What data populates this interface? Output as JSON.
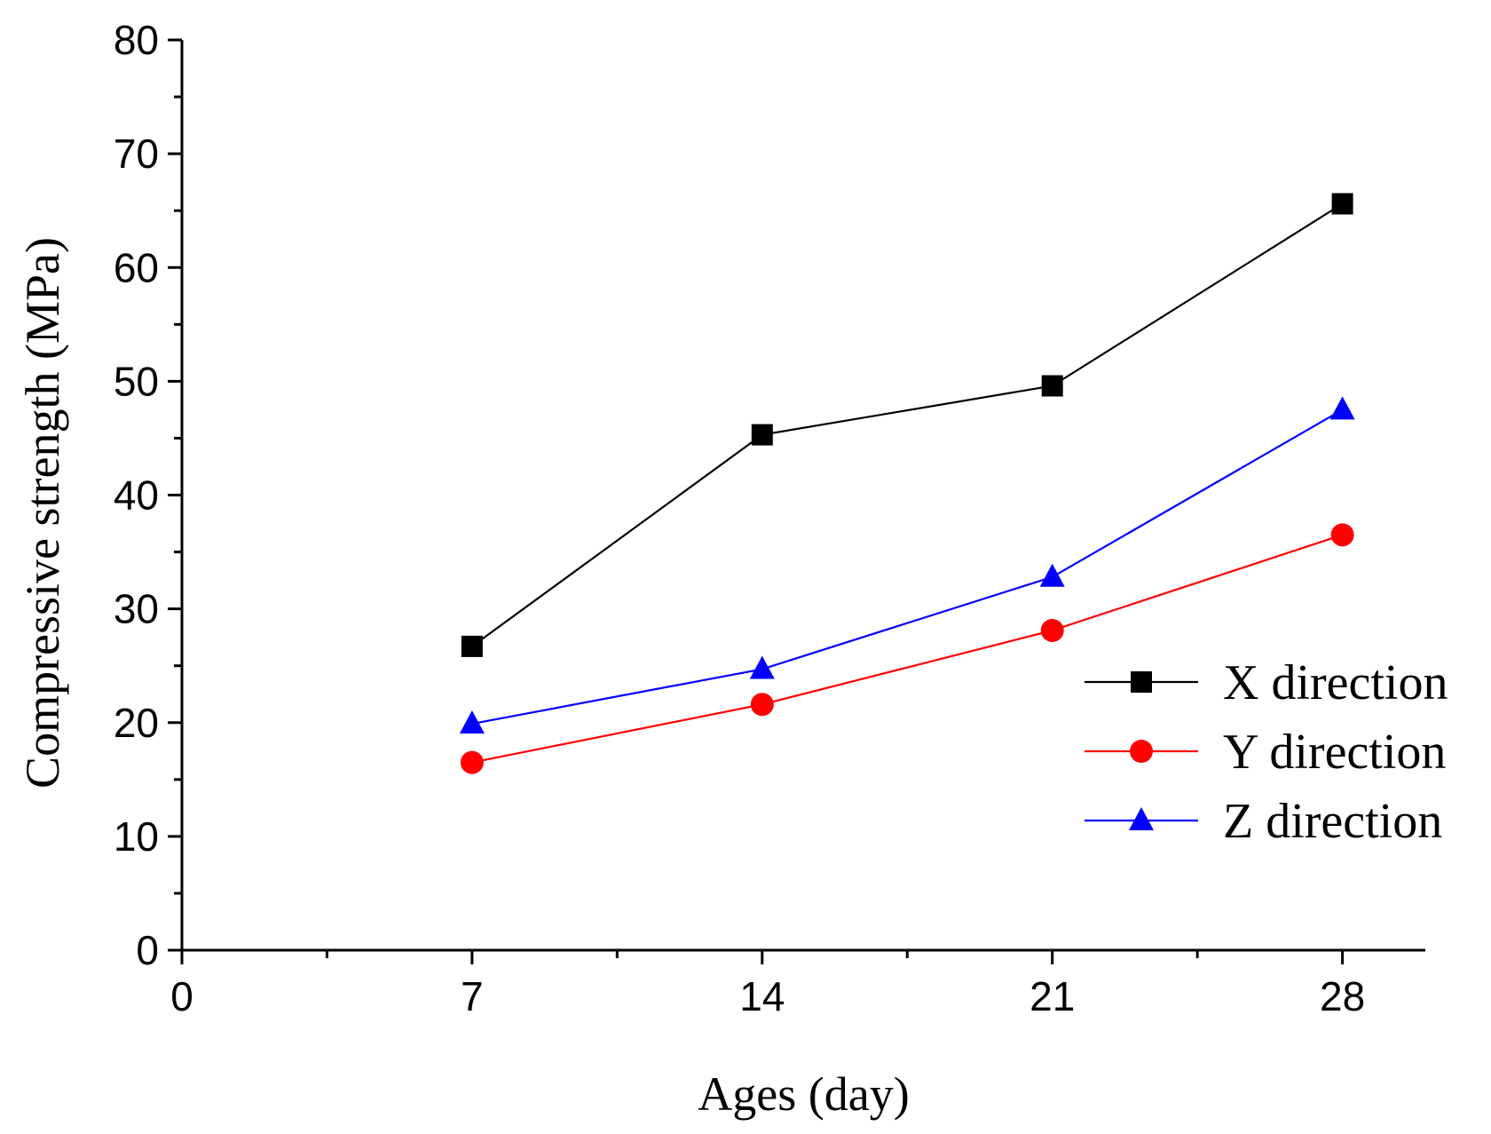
{
  "chart_data": {
    "type": "line",
    "xlabel": "Ages (day)",
    "ylabel": "Compressive strength (MPa)",
    "xlim": [
      0,
      30
    ],
    "ylim": [
      0,
      80
    ],
    "x_ticks": [
      0,
      7,
      14,
      21,
      28
    ],
    "y_ticks": [
      0,
      10,
      20,
      30,
      40,
      50,
      60,
      70,
      80
    ],
    "legend_position": "right",
    "grid": false,
    "x": [
      7,
      14,
      21,
      28
    ],
    "series": [
      {
        "name": "X direction",
        "color": "#000000",
        "marker": "square",
        "values": [
          26.7,
          45.3,
          49.6,
          65.6
        ]
      },
      {
        "name": "Y direction",
        "color": "#ff0000",
        "marker": "circle",
        "values": [
          16.5,
          21.6,
          28.1,
          36.5
        ]
      },
      {
        "name": "Z direction",
        "color": "#0000ff",
        "marker": "triangle",
        "values": [
          19.9,
          24.7,
          32.8,
          47.5
        ]
      }
    ]
  }
}
